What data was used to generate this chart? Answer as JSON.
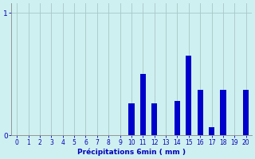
{
  "xlabel": "Précipitations 6min ( mm )",
  "ylabel": "",
  "xlim": [
    -0.5,
    20.5
  ],
  "ylim": [
    0,
    1.08
  ],
  "yticks": [
    0,
    1
  ],
  "xticks": [
    0,
    1,
    2,
    3,
    4,
    5,
    6,
    7,
    8,
    9,
    10,
    11,
    12,
    13,
    14,
    15,
    16,
    17,
    18,
    19,
    20
  ],
  "bar_color": "#0000cc",
  "background_color": "#cff0f0",
  "grid_color": "#a8c8c8",
  "categories": [
    0,
    1,
    2,
    3,
    4,
    5,
    6,
    7,
    8,
    9,
    10,
    11,
    12,
    13,
    14,
    15,
    16,
    17,
    18,
    19,
    20
  ],
  "values": [
    0,
    0,
    0,
    0,
    0,
    0,
    0,
    0,
    0,
    0,
    0.26,
    0.5,
    0.26,
    0,
    0.28,
    0.65,
    0.37,
    0.07,
    0.37,
    0,
    0.37
  ],
  "bar_width": 0.5,
  "tick_fontsize": 5.5,
  "xlabel_fontsize": 6.5
}
